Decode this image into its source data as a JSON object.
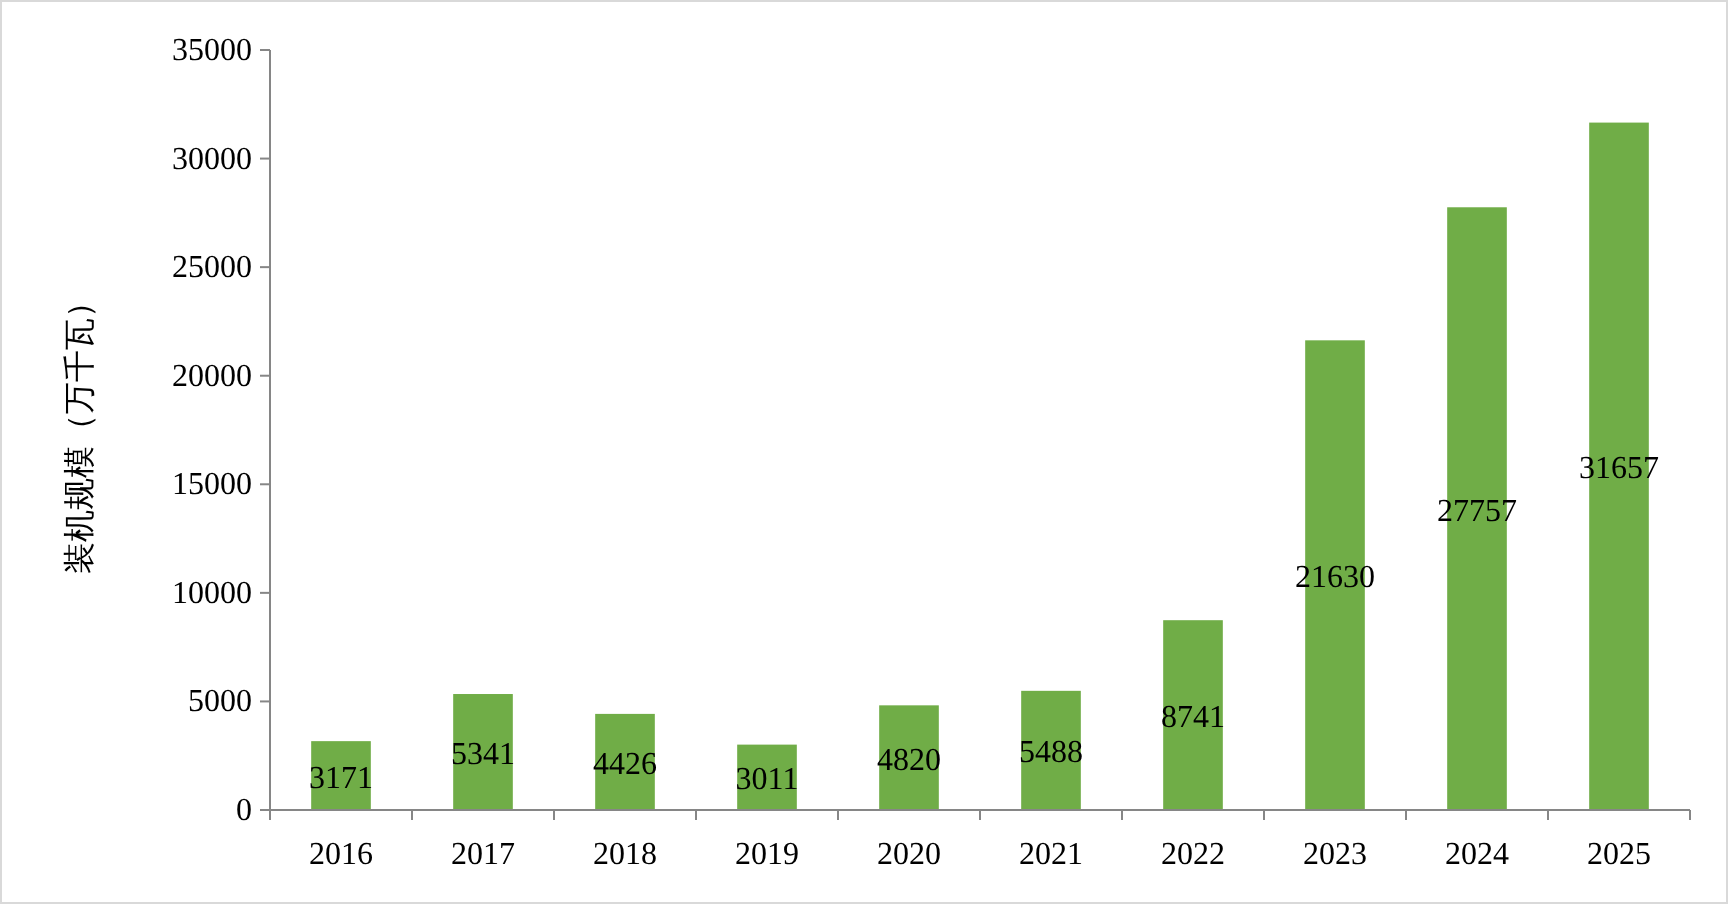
{
  "chart_data": {
    "type": "bar",
    "ylabel": "装机规模（万千瓦）",
    "categories": [
      "2016",
      "2017",
      "2018",
      "2019",
      "2020",
      "2021",
      "2022",
      "2023",
      "2024",
      "2025"
    ],
    "values": [
      3171,
      5341,
      4426,
      3011,
      4820,
      5488,
      8741,
      21630,
      27757,
      31657
    ],
    "color": "#70ad47",
    "ylim": [
      0,
      35000
    ],
    "yticks": [
      0,
      5000,
      10000,
      15000,
      20000,
      25000,
      30000,
      35000
    ],
    "data_labels": true,
    "grid": false
  }
}
